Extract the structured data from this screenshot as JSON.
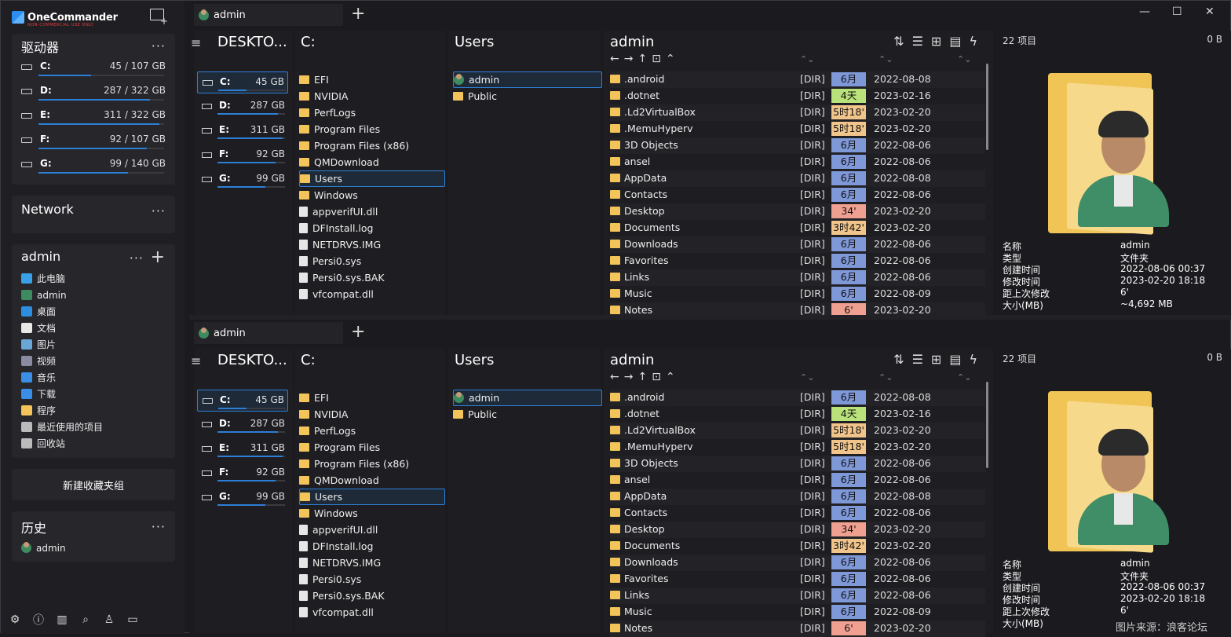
{
  "app": {
    "name": "OneCommander",
    "subtitle": "NON-COMMERCIAL USE ONLY"
  },
  "sidebar": {
    "drives_title": "驱动器",
    "more": "···",
    "drives": [
      {
        "letter": "C:",
        "size": "45 / 107 GB",
        "used": 0.42
      },
      {
        "letter": "D:",
        "size": "287 / 322 GB",
        "used": 0.89
      },
      {
        "letter": "E:",
        "size": "311 / 322 GB",
        "used": 0.96
      },
      {
        "letter": "F:",
        "size": "92 / 107 GB",
        "used": 0.86
      },
      {
        "letter": "G:",
        "size": "99 / 140 GB",
        "used": 0.71
      }
    ],
    "network_title": "Network",
    "fav_title": "admin",
    "fav_add": "+",
    "favorites": [
      {
        "icon": "pc-icon",
        "label": "此电脑",
        "color": "#3aa0e8"
      },
      {
        "icon": "user-icon",
        "label": "admin",
        "color": "#3d8b5f"
      },
      {
        "icon": "desktop-icon",
        "label": "桌面",
        "color": "#2d8ee0"
      },
      {
        "icon": "document-icon",
        "label": "文档",
        "color": "#e8e8e8"
      },
      {
        "icon": "picture-icon",
        "label": "图片",
        "color": "#6aa6d6"
      },
      {
        "icon": "video-icon",
        "label": "视频",
        "color": "#8a8aa0"
      },
      {
        "icon": "music-icon",
        "label": "音乐",
        "color": "#3a8ee6"
      },
      {
        "icon": "download-icon",
        "label": "下载",
        "color": "#3a8ee6"
      },
      {
        "icon": "folder-icon",
        "label": "程序",
        "color": "#f2c45a"
      },
      {
        "icon": "recent-icon",
        "label": "最近使用的项目",
        "color": "#bbbbbb"
      },
      {
        "icon": "recycle-icon",
        "label": "回收站",
        "color": "#bbbbbb"
      }
    ],
    "new_group": "新建收藏夹组",
    "history_title": "历史",
    "history": [
      {
        "label": "admin"
      }
    ]
  },
  "panes": [
    {
      "tab": "admin",
      "tab_add": "+",
      "col1_title": "DESKTO...",
      "col2_title": "C:",
      "col3_title": "Users",
      "col4_title": "admin",
      "drives": [
        {
          "letter": "C:",
          "size": "45 GB",
          "used": 0.42
        },
        {
          "letter": "D:",
          "size": "287 GB",
          "used": 0.89
        },
        {
          "letter": "E:",
          "size": "311 GB",
          "used": 0.96
        },
        {
          "letter": "F:",
          "size": "92 GB",
          "used": 0.86
        },
        {
          "letter": "G:",
          "size": "99 GB",
          "used": 0.71
        }
      ],
      "c_items": [
        {
          "name": "EFI",
          "type": "folder"
        },
        {
          "name": "NVIDIA",
          "type": "folder"
        },
        {
          "name": "PerfLogs",
          "type": "folder"
        },
        {
          "name": "Program Files",
          "type": "folder"
        },
        {
          "name": "Program Files (x86)",
          "type": "folder"
        },
        {
          "name": "QMDownload",
          "type": "folder"
        },
        {
          "name": "Users",
          "type": "folder",
          "sel": true
        },
        {
          "name": "Windows",
          "type": "folder"
        },
        {
          "name": "appverifUI.dll",
          "type": "file"
        },
        {
          "name": "DFInstall.log",
          "type": "file"
        },
        {
          "name": "NETDRVS.IMG",
          "type": "file"
        },
        {
          "name": "Persi0.sys",
          "type": "file"
        },
        {
          "name": "Persi0.sys.BAK",
          "type": "file"
        },
        {
          "name": "vfcompat.dll",
          "type": "file"
        }
      ],
      "users_items": [
        {
          "name": "admin",
          "type": "user",
          "sel": true
        },
        {
          "name": "Public",
          "type": "folder"
        }
      ],
      "files": [
        {
          "name": ".android",
          "dir": "[DIR]",
          "age": "6月",
          "color": "#7f98d8",
          "date": "2022-08-08"
        },
        {
          "name": ".dotnet",
          "dir": "[DIR]",
          "age": "4天",
          "color": "#b9e27a",
          "date": "2023-02-16"
        },
        {
          "name": ".Ld2VirtualBox",
          "dir": "[DIR]",
          "age": "5时18'",
          "color": "#f0c48a",
          "date": "2023-02-20"
        },
        {
          "name": ".MemuHyperv",
          "dir": "[DIR]",
          "age": "5时18'",
          "color": "#f0c48a",
          "date": "2023-02-20"
        },
        {
          "name": "3D Objects",
          "dir": "[DIR]",
          "age": "6月",
          "color": "#7f98d8",
          "date": "2022-08-06"
        },
        {
          "name": "ansel",
          "dir": "[DIR]",
          "age": "6月",
          "color": "#7f98d8",
          "date": "2022-08-06"
        },
        {
          "name": "AppData",
          "dir": "[DIR]",
          "age": "6月",
          "color": "#7f98d8",
          "date": "2022-08-08"
        },
        {
          "name": "Contacts",
          "dir": "[DIR]",
          "age": "6月",
          "color": "#7f98d8",
          "date": "2022-08-06"
        },
        {
          "name": "Desktop",
          "dir": "[DIR]",
          "age": "34'",
          "color": "#f0a090",
          "date": "2023-02-20"
        },
        {
          "name": "Documents",
          "dir": "[DIR]",
          "age": "3时42'",
          "color": "#f0c48a",
          "date": "2023-02-20"
        },
        {
          "name": "Downloads",
          "dir": "[DIR]",
          "age": "6月",
          "color": "#7f98d8",
          "date": "2022-08-06"
        },
        {
          "name": "Favorites",
          "dir": "[DIR]",
          "age": "6月",
          "color": "#7f98d8",
          "date": "2022-08-06"
        },
        {
          "name": "Links",
          "dir": "[DIR]",
          "age": "6月",
          "color": "#7f98d8",
          "date": "2022-08-06"
        },
        {
          "name": "Music",
          "dir": "[DIR]",
          "age": "6月",
          "color": "#7f98d8",
          "date": "2022-08-09"
        },
        {
          "name": "Notes",
          "dir": "[DIR]",
          "age": "6'",
          "color": "#f0a090",
          "date": "2023-02-20"
        }
      ],
      "preview": {
        "count": "22 项目",
        "size": "0 B",
        "props": [
          {
            "k": "名称",
            "v": "admin"
          },
          {
            "k": "类型",
            "v": "文件夹"
          },
          {
            "k": "创建时间",
            "v": "2022-08-06  00:37"
          },
          {
            "k": "修改时间",
            "v": "2023-02-20  18:18"
          },
          {
            "k": "距上次修改",
            "v": "6'"
          },
          {
            "k": "大小(MB)",
            "v": "~4,692 MB"
          }
        ]
      }
    },
    {
      "tab": "admin",
      "tab_add": "+",
      "col1_title": "DESKTO...",
      "col2_title": "C:",
      "col3_title": "Users",
      "col4_title": "admin",
      "drives": [
        {
          "letter": "C:",
          "size": "45 GB",
          "used": 0.42
        },
        {
          "letter": "D:",
          "size": "287 GB",
          "used": 0.89
        },
        {
          "letter": "E:",
          "size": "311 GB",
          "used": 0.96
        },
        {
          "letter": "F:",
          "size": "92 GB",
          "used": 0.86
        },
        {
          "letter": "G:",
          "size": "99 GB",
          "used": 0.71
        }
      ],
      "c_items": [
        {
          "name": "EFI",
          "type": "folder"
        },
        {
          "name": "NVIDIA",
          "type": "folder"
        },
        {
          "name": "PerfLogs",
          "type": "folder"
        },
        {
          "name": "Program Files",
          "type": "folder"
        },
        {
          "name": "Program Files (x86)",
          "type": "folder"
        },
        {
          "name": "QMDownload",
          "type": "folder"
        },
        {
          "name": "Users",
          "type": "folder",
          "sel": true
        },
        {
          "name": "Windows",
          "type": "folder"
        },
        {
          "name": "appverifUI.dll",
          "type": "file"
        },
        {
          "name": "DFInstall.log",
          "type": "file"
        },
        {
          "name": "NETDRVS.IMG",
          "type": "file"
        },
        {
          "name": "Persi0.sys",
          "type": "file"
        },
        {
          "name": "Persi0.sys.BAK",
          "type": "file"
        },
        {
          "name": "vfcompat.dll",
          "type": "file"
        }
      ],
      "users_items": [
        {
          "name": "admin",
          "type": "user",
          "sel": true
        },
        {
          "name": "Public",
          "type": "folder"
        }
      ],
      "files": [
        {
          "name": ".android",
          "dir": "[DIR]",
          "age": "6月",
          "color": "#7f98d8",
          "date": "2022-08-08"
        },
        {
          "name": ".dotnet",
          "dir": "[DIR]",
          "age": "4天",
          "color": "#b9e27a",
          "date": "2023-02-16"
        },
        {
          "name": ".Ld2VirtualBox",
          "dir": "[DIR]",
          "age": "5时18'",
          "color": "#f0c48a",
          "date": "2023-02-20"
        },
        {
          "name": ".MemuHyperv",
          "dir": "[DIR]",
          "age": "5时18'",
          "color": "#f0c48a",
          "date": "2023-02-20"
        },
        {
          "name": "3D Objects",
          "dir": "[DIR]",
          "age": "6月",
          "color": "#7f98d8",
          "date": "2022-08-06"
        },
        {
          "name": "ansel",
          "dir": "[DIR]",
          "age": "6月",
          "color": "#7f98d8",
          "date": "2022-08-06"
        },
        {
          "name": "AppData",
          "dir": "[DIR]",
          "age": "6月",
          "color": "#7f98d8",
          "date": "2022-08-08"
        },
        {
          "name": "Contacts",
          "dir": "[DIR]",
          "age": "6月",
          "color": "#7f98d8",
          "date": "2022-08-06"
        },
        {
          "name": "Desktop",
          "dir": "[DIR]",
          "age": "34'",
          "color": "#f0a090",
          "date": "2023-02-20"
        },
        {
          "name": "Documents",
          "dir": "[DIR]",
          "age": "3时42'",
          "color": "#f0c48a",
          "date": "2023-02-20"
        },
        {
          "name": "Downloads",
          "dir": "[DIR]",
          "age": "6月",
          "color": "#7f98d8",
          "date": "2022-08-06"
        },
        {
          "name": "Favorites",
          "dir": "[DIR]",
          "age": "6月",
          "color": "#7f98d8",
          "date": "2022-08-06"
        },
        {
          "name": "Links",
          "dir": "[DIR]",
          "age": "6月",
          "color": "#7f98d8",
          "date": "2022-08-06"
        },
        {
          "name": "Music",
          "dir": "[DIR]",
          "age": "6月",
          "color": "#7f98d8",
          "date": "2022-08-09"
        },
        {
          "name": "Notes",
          "dir": "[DIR]",
          "age": "6'",
          "color": "#f0a090",
          "date": "2023-02-20"
        }
      ],
      "preview": {
        "count": "22 项目",
        "size": "0 B",
        "props": [
          {
            "k": "名称",
            "v": "admin"
          },
          {
            "k": "类型",
            "v": "文件夹"
          },
          {
            "k": "创建时间",
            "v": "2022-08-06  00:37"
          },
          {
            "k": "修改时间",
            "v": "2023-02-20  18:18"
          },
          {
            "k": "距上次修改",
            "v": "6'"
          },
          {
            "k": "大小(MB)",
            "v": ""
          }
        ]
      }
    }
  ],
  "window": {
    "minimize": "—",
    "maximize": "☐",
    "close": "✕"
  },
  "watermark": "图片来源：浪客论坛"
}
